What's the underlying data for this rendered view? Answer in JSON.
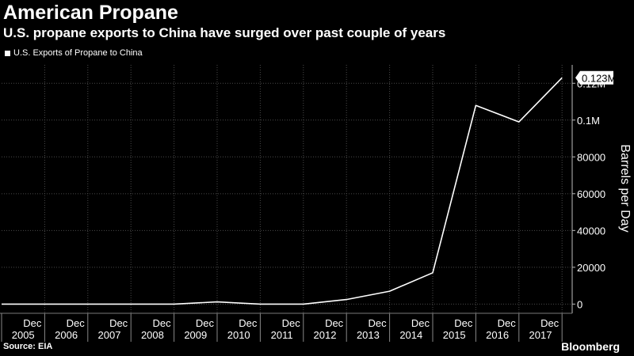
{
  "header": {
    "title": "American Propane",
    "subtitle": "U.S. propane exports to China have surged over past couple of years"
  },
  "footer": {
    "source": "Source: EIA",
    "brand": "Bloomberg"
  },
  "chart_data": {
    "type": "line",
    "title": "American Propane",
    "subtitle": "U.S. propane exports to China have surged over past couple of years",
    "xlabel": "",
    "ylabel": "Barrels per Day",
    "legend": "top-left",
    "grid": true,
    "ylim": [
      -5000,
      130000
    ],
    "x": [
      "Dec 2005",
      "Dec 2006",
      "Dec 2007",
      "Dec 2008",
      "Dec 2009",
      "Dec 2010",
      "Dec 2011",
      "Dec 2012",
      "Dec 2013",
      "Dec 2014",
      "Dec 2015",
      "Dec 2016",
      "Dec 2017"
    ],
    "series": [
      {
        "name": "U.S. Exports of Propane to China",
        "color": "#ffffff",
        "values": [
          0,
          0,
          0,
          0,
          1200,
          0,
          0,
          2500,
          7000,
          17000,
          108000,
          99000,
          123000
        ]
      }
    ],
    "y_ticks": [
      {
        "value": 0,
        "label": "0"
      },
      {
        "value": 20000,
        "label": "20000"
      },
      {
        "value": 40000,
        "label": "40000"
      },
      {
        "value": 60000,
        "label": "60000"
      },
      {
        "value": 80000,
        "label": "80000"
      },
      {
        "value": 100000,
        "label": "0.1M"
      },
      {
        "value": 120000,
        "label": "0.12M"
      }
    ],
    "x_tick_top": [
      "Dec",
      "Dec",
      "Dec",
      "Dec",
      "Dec",
      "Dec",
      "Dec",
      "Dec",
      "Dec",
      "Dec",
      "Dec",
      "Dec",
      "Dec"
    ],
    "x_year_labels": [
      "2005",
      "2006",
      "2007",
      "2008",
      "2009",
      "2010",
      "2011",
      "2012",
      "2013",
      "2014",
      "2015",
      "2016",
      "2017"
    ],
    "last_value_label": "0.123M"
  }
}
